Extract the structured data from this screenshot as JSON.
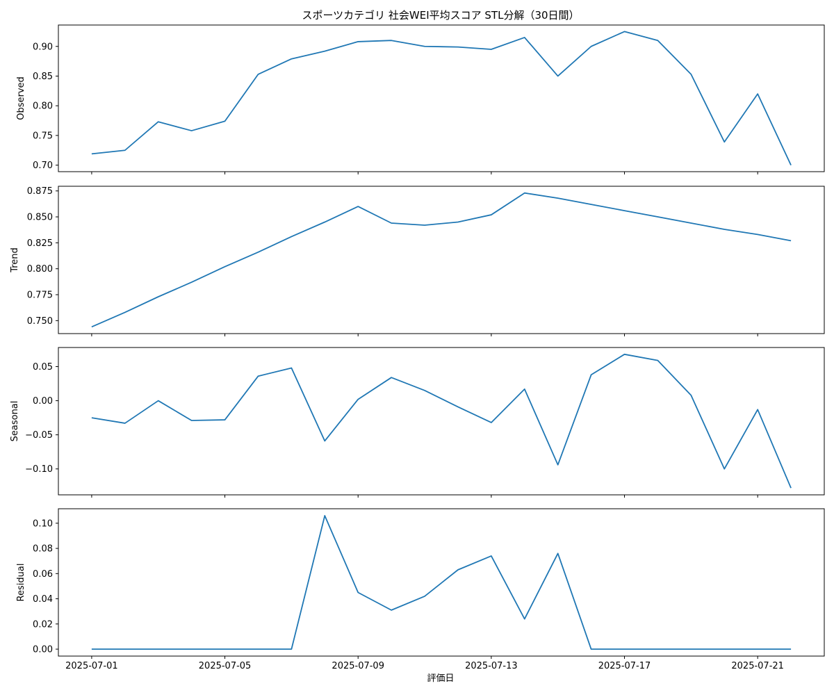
{
  "chart_data": {
    "type": "line",
    "title": "スポーツカテゴリ 社会WEI平均スコア STL分解（30日間）",
    "xlabel": "評価日",
    "x_dates": [
      "2025-07-01",
      "2025-07-02",
      "2025-07-03",
      "2025-07-04",
      "2025-07-05",
      "2025-07-06",
      "2025-07-07",
      "2025-07-08",
      "2025-07-09",
      "2025-07-10",
      "2025-07-11",
      "2025-07-12",
      "2025-07-13",
      "2025-07-14",
      "2025-07-15",
      "2025-07-16",
      "2025-07-17",
      "2025-07-18",
      "2025-07-19",
      "2025-07-20",
      "2025-07-21",
      "2025-07-22"
    ],
    "x_tick_labels": [
      "2025-07-01",
      "2025-07-05",
      "2025-07-09",
      "2025-07-13",
      "2025-07-17",
      "2025-07-21"
    ],
    "xlim": [
      "2025-06-30T00:00",
      "2025-07-23T00:00"
    ],
    "line_color": "#1f77b4",
    "panels": [
      {
        "name": "Observed",
        "ylabel": "Observed",
        "ylim": [
          0.689,
          0.936
        ],
        "yticks": [
          0.7,
          0.75,
          0.8,
          0.85,
          0.9
        ],
        "ytick_labels": [
          "0.70",
          "0.75",
          "0.80",
          "0.85",
          "0.90"
        ],
        "values": [
          0.719,
          0.725,
          0.773,
          0.758,
          0.774,
          0.853,
          0.879,
          0.892,
          0.908,
          0.91,
          0.9,
          0.899,
          0.895,
          0.915,
          0.85,
          0.9,
          0.925,
          0.91,
          0.853,
          0.739,
          0.82,
          0.7
        ]
      },
      {
        "name": "Trend",
        "ylabel": "Trend",
        "ylim": [
          0.7375,
          0.8795
        ],
        "yticks": [
          0.75,
          0.775,
          0.8,
          0.825,
          0.85,
          0.875
        ],
        "ytick_labels": [
          "0.750",
          "0.775",
          "0.800",
          "0.825",
          "0.850",
          "0.875"
        ],
        "values": [
          0.744,
          0.758,
          0.773,
          0.787,
          0.802,
          0.816,
          0.831,
          0.845,
          0.86,
          0.844,
          0.842,
          0.845,
          0.852,
          0.873,
          0.868,
          0.862,
          0.856,
          0.85,
          0.844,
          0.838,
          0.833,
          0.827
        ]
      },
      {
        "name": "Seasonal",
        "ylabel": "Seasonal",
        "ylim": [
          -0.138,
          0.078
        ],
        "yticks": [
          -0.1,
          -0.05,
          0.0,
          0.05
        ],
        "ytick_labels": [
          "−0.10",
          "−0.05",
          "0.00",
          "0.05"
        ],
        "values": [
          -0.025,
          -0.033,
          0.0,
          -0.029,
          -0.028,
          0.036,
          0.048,
          -0.059,
          0.002,
          0.034,
          0.015,
          -0.009,
          -0.032,
          0.017,
          -0.094,
          0.038,
          0.068,
          0.059,
          0.008,
          -0.1,
          -0.013,
          -0.128
        ]
      },
      {
        "name": "Residual",
        "ylabel": "Residual",
        "ylim": [
          -0.0055,
          0.1115
        ],
        "yticks": [
          0.0,
          0.02,
          0.04,
          0.06,
          0.08,
          0.1
        ],
        "ytick_labels": [
          "0.00",
          "0.02",
          "0.04",
          "0.06",
          "0.08",
          "0.10"
        ],
        "values": [
          0.0,
          0.0,
          0.0,
          0.0,
          0.0,
          0.0,
          0.0,
          0.106,
          0.045,
          0.031,
          0.042,
          0.063,
          0.074,
          0.024,
          0.076,
          0.0,
          0.0,
          0.0,
          0.0,
          0.0,
          0.0,
          0.0
        ]
      }
    ]
  }
}
